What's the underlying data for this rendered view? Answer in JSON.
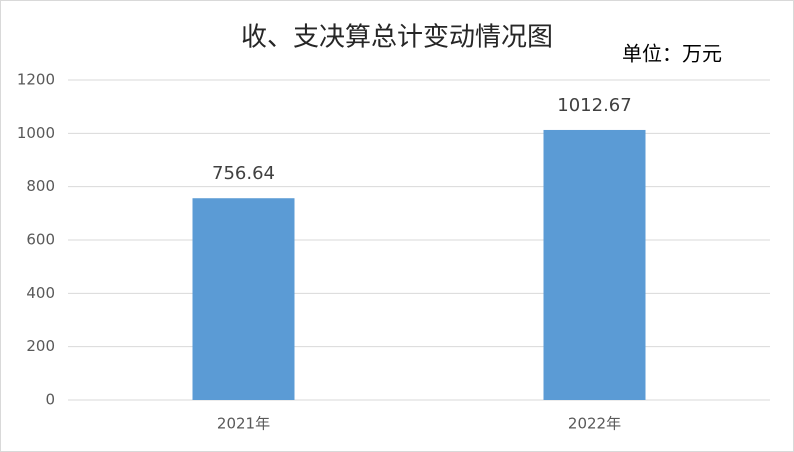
{
  "chart_data": {
    "type": "bar",
    "title": "收、支决算总计变动情况图",
    "unit_label": "单位：万元",
    "categories": [
      "2021年",
      "2022年"
    ],
    "values": [
      756.64,
      1012.67
    ],
    "color": "#5b9bd5",
    "ylim": [
      0,
      1200
    ],
    "yticks": [
      0,
      200,
      400,
      600,
      800,
      1000,
      1200
    ],
    "grid": true
  }
}
